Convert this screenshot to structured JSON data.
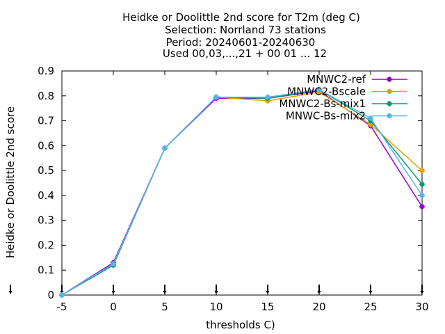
{
  "chart_data": {
    "type": "line",
    "title_lines": [
      "Heidke or Doolittle 2nd score  for T2m (deg C)",
      "Selection: Norrland     73 stations",
      "Period: 20240601-20240630",
      "Used 00,03,...,21 + 00 01 ... 12"
    ],
    "xlabel": "thresholds C)",
    "ylabel": "Heidke or Doolittle 2nd score",
    "x": [
      -5,
      0,
      5,
      10,
      15,
      20,
      25,
      30
    ],
    "xlim": [
      -5,
      30
    ],
    "ylim": [
      0,
      0.9
    ],
    "x_ticks": [
      "-5",
      "0",
      "5",
      "10",
      "15",
      "20",
      "25",
      "30"
    ],
    "y_ticks": [
      "0",
      "0.1",
      "0.2",
      "0.3",
      "0.4",
      "0.5",
      "0.6",
      "0.7",
      "0.8",
      "0.9"
    ],
    "grid": false,
    "legend_position": "top-right",
    "series": [
      {
        "name": "MNWC2-ref",
        "color": "#9400d3",
        "marker": "plus-circle",
        "values": [
          0.0,
          0.13,
          0.59,
          0.79,
          0.79,
          0.82,
          0.68,
          0.355
        ]
      },
      {
        "name": "MNWC2-Bscale",
        "color": "#e69f00",
        "marker": "plus-circle",
        "values": [
          0.0,
          0.12,
          0.59,
          0.795,
          0.78,
          0.815,
          0.685,
          0.5
        ]
      },
      {
        "name": "MNWC2-Bs-mix1",
        "color": "#009e73",
        "marker": "plus-circle",
        "values": [
          0.0,
          0.12,
          0.59,
          0.795,
          0.79,
          0.825,
          0.7,
          0.445
        ]
      },
      {
        "name": "MNWC-Bs-mix2",
        "color": "#56b4e9",
        "marker": "plus-circle",
        "values": [
          0.0,
          0.125,
          0.59,
          0.795,
          0.795,
          0.825,
          0.71,
          0.4
        ]
      }
    ]
  }
}
